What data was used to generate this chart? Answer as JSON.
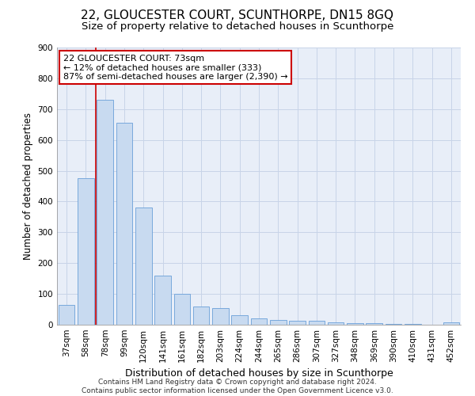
{
  "title": "22, GLOUCESTER COURT, SCUNTHORPE, DN15 8GQ",
  "subtitle": "Size of property relative to detached houses in Scunthorpe",
  "xlabel": "Distribution of detached houses by size in Scunthorpe",
  "ylabel": "Number of detached properties",
  "categories": [
    "37sqm",
    "58sqm",
    "78sqm",
    "99sqm",
    "120sqm",
    "141sqm",
    "161sqm",
    "182sqm",
    "203sqm",
    "224sqm",
    "244sqm",
    "265sqm",
    "286sqm",
    "307sqm",
    "327sqm",
    "348sqm",
    "369sqm",
    "390sqm",
    "410sqm",
    "431sqm",
    "452sqm"
  ],
  "values": [
    65,
    475,
    730,
    655,
    380,
    160,
    100,
    60,
    55,
    30,
    20,
    15,
    13,
    12,
    8,
    5,
    4,
    3,
    2,
    1,
    8
  ],
  "bar_color": "#c8daf0",
  "bar_edge_color": "#6a9fd8",
  "vline_x": 1.5,
  "vline_color": "#cc0000",
  "annotation_text": "22 GLOUCESTER COURT: 73sqm\n← 12% of detached houses are smaller (333)\n87% of semi-detached houses are larger (2,390) →",
  "annotation_box_color": "#ffffff",
  "annotation_box_edge_color": "#cc0000",
  "ylim": [
    0,
    900
  ],
  "yticks": [
    0,
    100,
    200,
    300,
    400,
    500,
    600,
    700,
    800,
    900
  ],
  "grid_color": "#c8d4e8",
  "background_color": "#e8eef8",
  "footnote": "Contains HM Land Registry data © Crown copyright and database right 2024.\nContains public sector information licensed under the Open Government Licence v3.0.",
  "title_fontsize": 11,
  "subtitle_fontsize": 9.5,
  "xlabel_fontsize": 9,
  "ylabel_fontsize": 8.5,
  "tick_fontsize": 7.5,
  "annot_fontsize": 8,
  "footnote_fontsize": 6.5
}
